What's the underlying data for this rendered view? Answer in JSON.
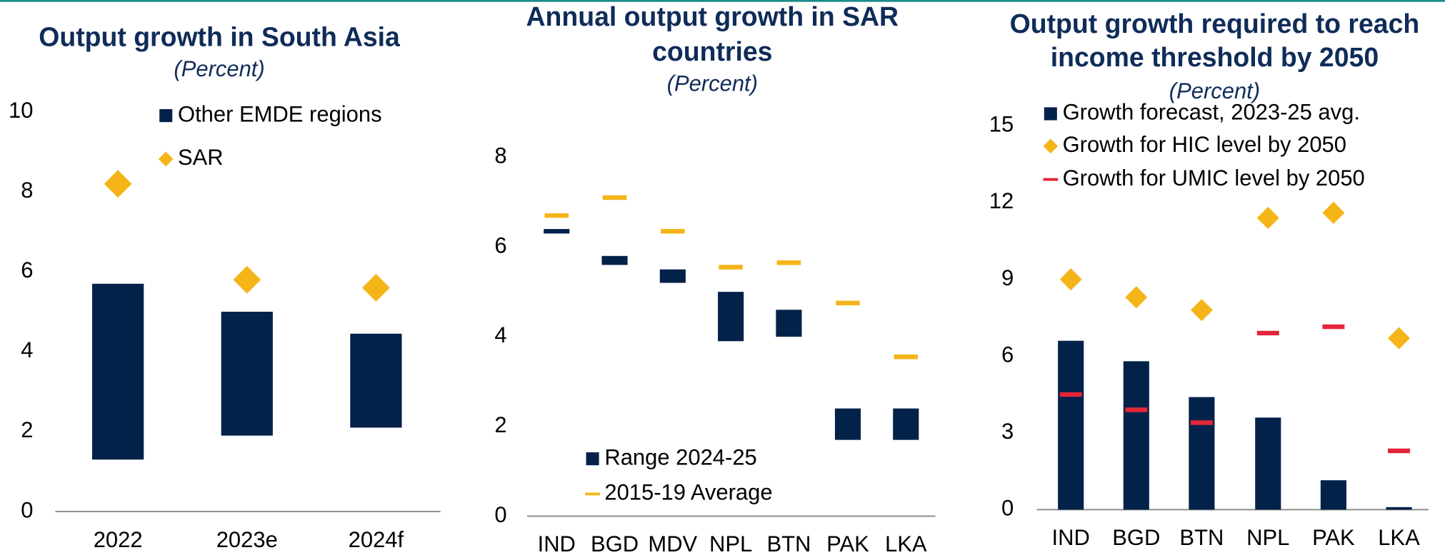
{
  "chart_data": [
    {
      "type": "range",
      "title": "Output growth in South Asia",
      "subtitle": "(Percent)",
      "categories": [
        "2022",
        "2023e",
        "2024f"
      ],
      "series": [
        {
          "name": "Other EMDE regions",
          "color": "#03224a",
          "kind": "range",
          "low": [
            1.3,
            1.9,
            2.1
          ],
          "high": [
            5.7,
            5.0,
            4.45
          ]
        },
        {
          "name": "SAR",
          "color": "#f5b519",
          "kind": "diamond",
          "values": [
            8.2,
            5.8,
            5.6
          ]
        }
      ],
      "ylim": [
        0,
        10
      ],
      "yticks": [
        0,
        2,
        4,
        6,
        8,
        10
      ]
    },
    {
      "type": "range",
      "title": [
        "Annual output growth in SAR",
        "countries"
      ],
      "subtitle": "(Percent)",
      "categories": [
        "IND",
        "BGD",
        "MDV",
        "NPL",
        "BTN",
        "PAK",
        "LKA"
      ],
      "series": [
        {
          "name": "Range 2024-25",
          "color": "#03224a",
          "kind": "range",
          "low": [
            6.3,
            5.6,
            5.2,
            3.9,
            4.0,
            1.7,
            1.7
          ],
          "high": [
            6.4,
            5.8,
            5.5,
            5.0,
            4.6,
            2.4,
            2.4
          ]
        },
        {
          "name": "2015-19 Average",
          "color": "#f5b519",
          "kind": "dash",
          "values": [
            6.7,
            7.1,
            6.35,
            5.55,
            5.65,
            4.75,
            3.55
          ]
        }
      ],
      "ylim": [
        0,
        8
      ],
      "yticks": [
        0,
        2,
        4,
        6,
        8
      ]
    },
    {
      "type": "bar",
      "title": [
        "Output growth required to reach",
        "income threshold by 2050"
      ],
      "subtitle": "(Percent)",
      "categories": [
        "IND",
        "BGD",
        "BTN",
        "NPL",
        "PAK",
        "LKA"
      ],
      "series": [
        {
          "name": "Growth forecast, 2023-25 avg.",
          "color": "#03224a",
          "kind": "bar",
          "values": [
            6.6,
            5.8,
            4.4,
            3.6,
            1.15,
            0.1
          ]
        },
        {
          "name": "Growth for HIC level by 2050",
          "color": "#f5b519",
          "kind": "diamond",
          "values": [
            9.0,
            8.3,
            7.8,
            11.4,
            11.6,
            6.7
          ]
        },
        {
          "name": "Growth for UMIC level by 2050",
          "color": "#e3263a",
          "kind": "dash",
          "values": [
            4.5,
            3.9,
            3.4,
            6.9,
            7.15,
            2.3
          ]
        }
      ],
      "ylim": [
        0,
        15
      ],
      "yticks": [
        0,
        3,
        6,
        9,
        12,
        15
      ]
    }
  ]
}
